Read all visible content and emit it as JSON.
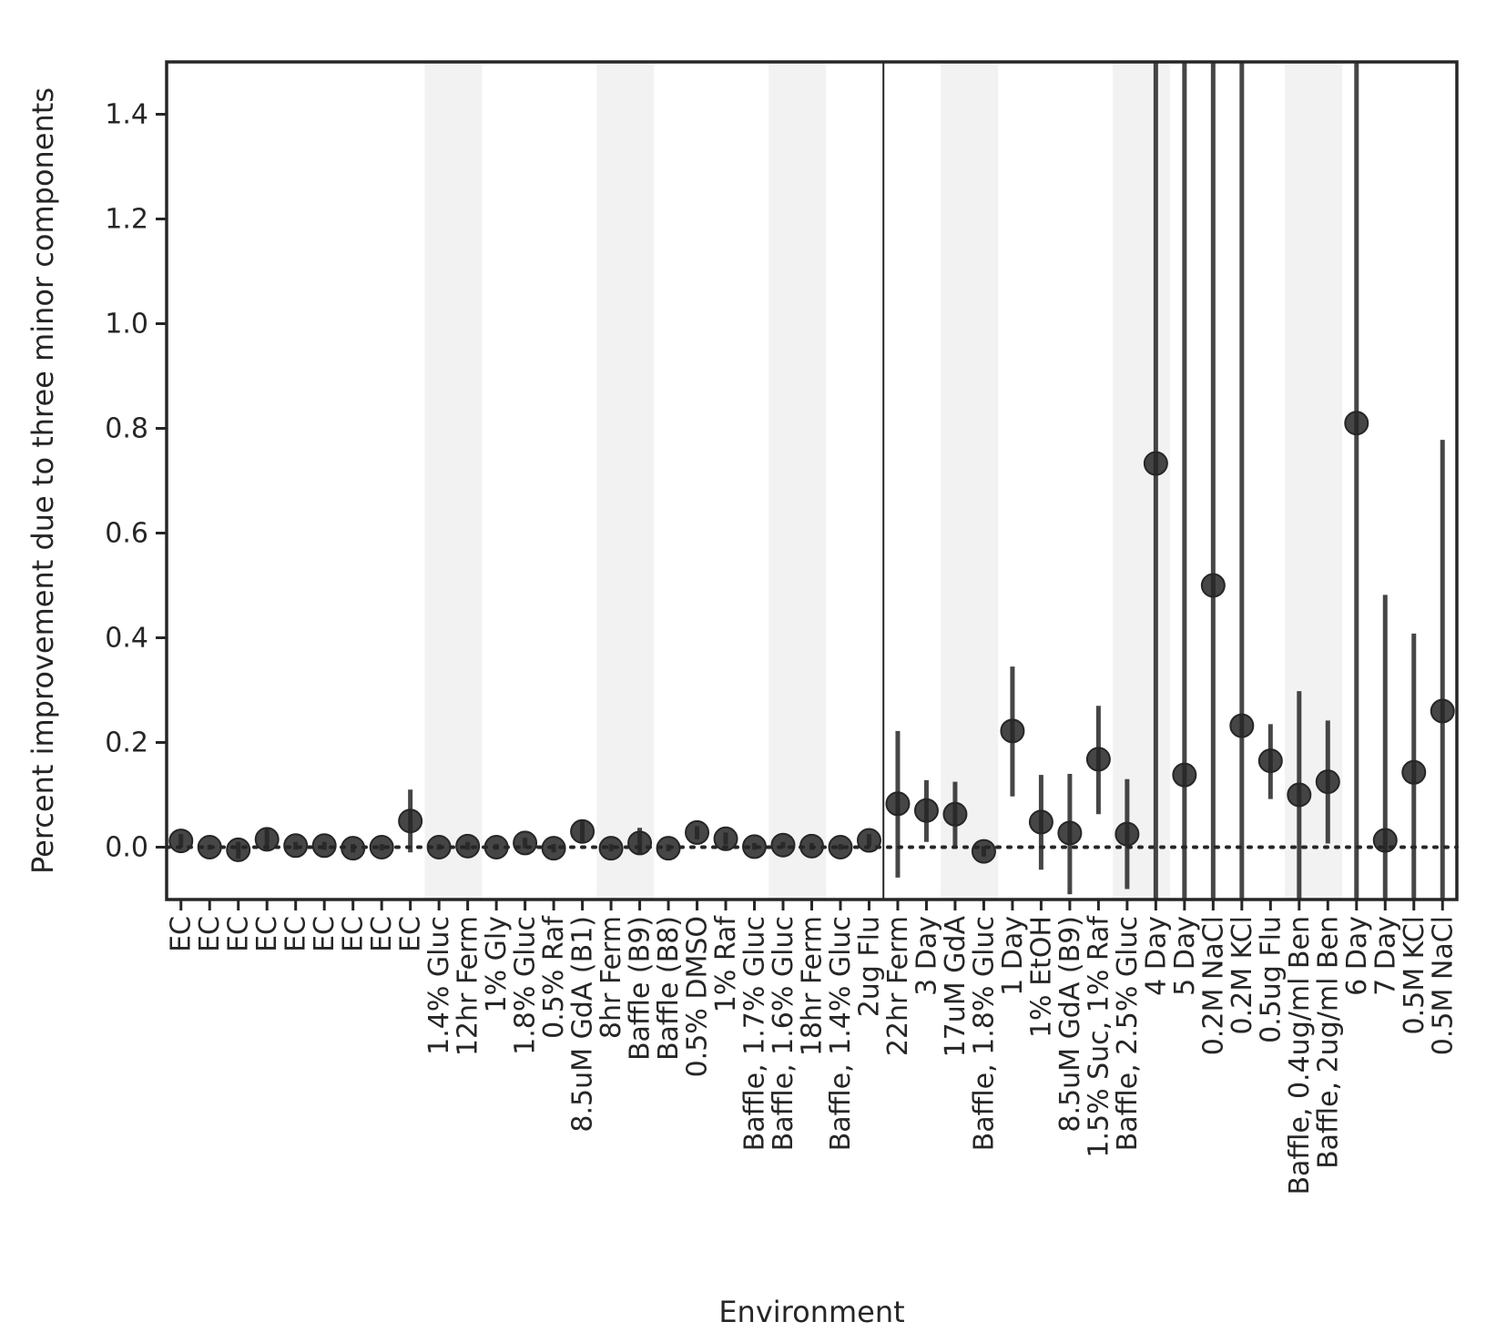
{
  "chart_data": {
    "type": "scatter",
    "xlabel": "Environment",
    "ylabel": "Percent improvement due to three minor components",
    "ylim": [
      -0.1,
      1.5
    ],
    "yticks": [
      "0.0",
      "0.2",
      "0.4",
      "0.6",
      "0.8",
      "1.0",
      "1.2",
      "1.4"
    ],
    "reference_line_y": 0.0,
    "divider_after_category_index": 24,
    "shaded_bands": [
      [
        9,
        11
      ],
      [
        15,
        17
      ],
      [
        21,
        23
      ],
      [
        27,
        29
      ],
      [
        33,
        35
      ],
      [
        39,
        41
      ]
    ],
    "colors": {
      "marker": "#262626",
      "band": "#f2f2f2",
      "axis": "#262626"
    },
    "categories": [
      "EC",
      "EC",
      "EC",
      "EC",
      "EC",
      "EC",
      "EC",
      "EC",
      "EC",
      "1.4% Gluc",
      "12hr Ferm",
      "1% Gly",
      "1.8% Gluc",
      "0.5% Raf",
      "8.5uM GdA (B1)",
      "8hr Ferm",
      "Baffle (B9)",
      "Baffle (B8)",
      "0.5% DMSO",
      "1% Raf",
      "Baffle, 1.7% Gluc",
      "Baffle, 1.6% Gluc",
      "18hr Ferm",
      "Baffle, 1.4% Gluc",
      "2ug Flu",
      "22hr Ferm",
      "3 Day",
      "17uM GdA",
      "Baffle, 1.8% Gluc",
      "1 Day",
      "1% EtOH",
      "8.5uM GdA (B9)",
      "1.5% Suc, 1% Raf",
      "Baffle, 2.5% Gluc",
      "4 Day",
      "5 Day",
      "0.2M NaCl",
      "0.2M KCl",
      "0.5ug Flu",
      "Baffle, 0.4ug/ml Ben",
      "Baffle, 2ug/ml Ben",
      "6 Day",
      "7 Day",
      "0.5M KCl",
      "0.5M NaCl"
    ],
    "values": [
      0.012,
      0.0,
      -0.005,
      0.015,
      0.003,
      0.003,
      -0.002,
      0.0,
      0.05,
      0.0,
      0.002,
      0.0,
      0.008,
      -0.002,
      0.03,
      -0.002,
      0.008,
      -0.002,
      0.028,
      0.016,
      0.001,
      0.004,
      0.002,
      0.0,
      0.013,
      0.083,
      0.07,
      0.063,
      -0.008,
      0.222,
      0.048,
      0.027,
      0.168,
      0.025,
      0.733,
      0.138,
      0.5,
      0.232,
      0.165,
      0.1,
      0.125,
      0.81,
      0.013,
      0.143,
      0.26
    ],
    "err_low": [
      0.0,
      -0.005,
      -0.022,
      -0.005,
      -0.005,
      -0.005,
      -0.01,
      -0.006,
      -0.01,
      -0.005,
      -0.005,
      -0.005,
      -0.002,
      -0.01,
      0.01,
      -0.008,
      -0.015,
      -0.008,
      0.015,
      0.005,
      -0.005,
      -0.002,
      -0.005,
      -0.005,
      0.002,
      -0.058,
      0.01,
      0.002,
      -0.018,
      0.097,
      -0.043,
      -0.09,
      0.063,
      -0.08,
      -0.1,
      -0.1,
      -0.1,
      -0.1,
      0.092,
      -0.1,
      0.007,
      -0.1,
      -0.1,
      -0.1,
      -0.1
    ],
    "err_high": [
      0.025,
      0.005,
      0.01,
      0.035,
      0.01,
      0.01,
      0.006,
      0.006,
      0.11,
      0.006,
      0.01,
      0.006,
      0.018,
      0.006,
      0.05,
      0.006,
      0.037,
      0.005,
      0.04,
      0.028,
      0.008,
      0.01,
      0.008,
      0.006,
      0.025,
      0.222,
      0.128,
      0.125,
      0.002,
      0.345,
      0.138,
      0.14,
      0.27,
      0.13,
      1.5,
      1.5,
      1.5,
      1.5,
      0.235,
      0.298,
      0.242,
      1.5,
      0.482,
      0.408,
      0.778
    ]
  }
}
